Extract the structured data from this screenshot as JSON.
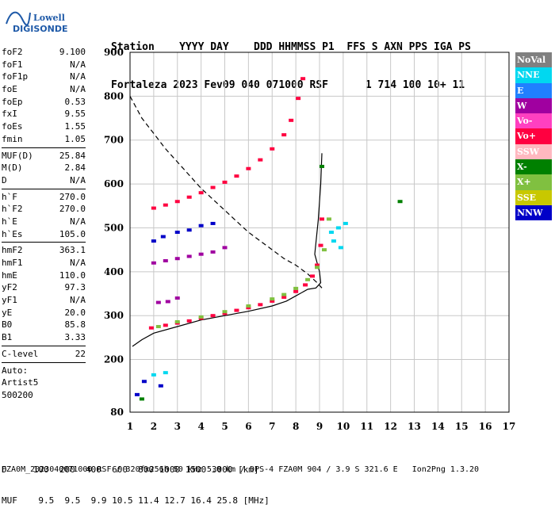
{
  "logo": {
    "line1": "Lowell",
    "line2": "DIGISONDE"
  },
  "header": {
    "labels": "Station    YYYY DAY    DDD HHMMSS P1  FFS S AXN PPS IGA PS",
    "values": "Fortaleza 2023 Fev09 040 071000 RSF      1 714 100 10+ 11"
  },
  "params": [
    {
      "name": "foF2",
      "value": "9.100"
    },
    {
      "name": "foF1",
      "value": "N/A"
    },
    {
      "name": "foF1p",
      "value": "N/A"
    },
    {
      "name": "foE",
      "value": "N/A"
    },
    {
      "name": "foEp",
      "value": "0.53"
    },
    {
      "name": "fxI",
      "value": "9.55"
    },
    {
      "name": "foEs",
      "value": "1.55"
    },
    {
      "name": "fmin",
      "value": "1.05"
    },
    {
      "sep": true
    },
    {
      "name": "MUF(D)",
      "value": "25.84"
    },
    {
      "name": "M(D)",
      "value": "2.84"
    },
    {
      "name": "D",
      "value": "N/A"
    },
    {
      "sep": true
    },
    {
      "name": "h`F",
      "value": "270.0"
    },
    {
      "name": "h`F2",
      "value": "270.0"
    },
    {
      "name": "h`E",
      "value": "N/A"
    },
    {
      "name": "h`Es",
      "value": "105.0"
    },
    {
      "sep": true
    },
    {
      "name": "hmF2",
      "value": "363.1"
    },
    {
      "name": "hmF1",
      "value": "N/A"
    },
    {
      "name": "hmE",
      "value": "110.0"
    },
    {
      "name": "yF2",
      "value": "97.3"
    },
    {
      "name": "yF1",
      "value": "N/A"
    },
    {
      "name": "yE",
      "value": "20.0"
    },
    {
      "name": "B0",
      "value": "85.8"
    },
    {
      "name": "B1",
      "value": "3.33"
    },
    {
      "sep": true
    },
    {
      "name": "C-level",
      "value": "22"
    },
    {
      "sep": true
    }
  ],
  "auto": {
    "l1": "Auto:",
    "l2": "Artist5",
    "l3": "500200"
  },
  "legend": [
    {
      "label": "NoVal",
      "color": "#808080"
    },
    {
      "label": "NNE",
      "color": "#00d8f0"
    },
    {
      "label": "E",
      "color": "#2080ff"
    },
    {
      "label": "W",
      "color": "#a000a0"
    },
    {
      "label": "Vo-",
      "color": "#ff40c0"
    },
    {
      "label": "Vo+",
      "color": "#ff0040"
    },
    {
      "label": "SSW",
      "color": "#ffb8c0"
    },
    {
      "label": "X-",
      "color": "#008000"
    },
    {
      "label": "X+",
      "color": "#80c040"
    },
    {
      "label": "SSE",
      "color": "#c8c800"
    },
    {
      "label": "NNW",
      "color": "#0000c8"
    }
  ],
  "footer": {
    "line1": "D     100  200  400  600  800 1000 1500 3000 [km]",
    "line2": "MUF    9.5  9.5  9.9 10.5 11.4 12.7 16.4 25.8 [MHz]",
    "line3": "FZA0M_2023040071000.RSF / 320fx256h 50 kHz 5.0 km / DPS-4 FZA0M 904 / 3.9 S 321.6 E   Ion2Png 1.3.20"
  },
  "chart_data": {
    "type": "scatter",
    "xlim": [
      1,
      17
    ],
    "ylim": [
      80,
      900
    ],
    "xticks": [
      1,
      2,
      3,
      4,
      5,
      6,
      7,
      8,
      9,
      10,
      11,
      12,
      13,
      14,
      15,
      16,
      17
    ],
    "yticks": [
      80,
      200,
      300,
      400,
      500,
      600,
      700,
      800,
      900
    ],
    "series": [
      {
        "name": "Vo+",
        "values": [
          [
            1.9,
            272
          ],
          [
            2.5,
            278
          ],
          [
            3,
            283
          ],
          [
            3.5,
            288
          ],
          [
            4,
            294
          ],
          [
            4.5,
            300
          ],
          [
            5,
            305
          ],
          [
            5.5,
            312
          ],
          [
            6,
            318
          ],
          [
            6.5,
            325
          ],
          [
            7,
            333
          ],
          [
            7.5,
            342
          ],
          [
            8,
            355
          ],
          [
            8.4,
            370
          ],
          [
            8.7,
            390
          ],
          [
            8.9,
            415
          ],
          [
            9.05,
            460
          ],
          [
            9.1,
            520
          ]
        ]
      },
      {
        "name": "Vo+",
        "values": [
          [
            2,
            545
          ],
          [
            2.5,
            552
          ],
          [
            3,
            560
          ],
          [
            3.5,
            570
          ],
          [
            4,
            580
          ],
          [
            4.5,
            592
          ],
          [
            5,
            604
          ],
          [
            5.5,
            618
          ],
          [
            6,
            635
          ],
          [
            6.5,
            655
          ],
          [
            7,
            680
          ],
          [
            7.5,
            712
          ],
          [
            7.8,
            745
          ],
          [
            8.1,
            795
          ],
          [
            8.3,
            840
          ]
        ]
      },
      {
        "name": "X+",
        "values": [
          [
            2.2,
            275
          ],
          [
            3,
            286
          ],
          [
            4,
            297
          ],
          [
            5,
            309
          ],
          [
            6,
            322
          ],
          [
            7,
            338
          ],
          [
            7.5,
            348
          ],
          [
            8,
            362
          ],
          [
            8.5,
            382
          ],
          [
            8.9,
            410
          ],
          [
            9.2,
            450
          ],
          [
            9.4,
            520
          ]
        ]
      },
      {
        "name": "W",
        "values": [
          [
            2.2,
            330
          ],
          [
            2.6,
            332
          ],
          [
            3,
            340
          ],
          [
            2,
            420
          ],
          [
            2.5,
            425
          ],
          [
            3,
            430
          ],
          [
            3.5,
            435
          ],
          [
            4,
            440
          ],
          [
            4.5,
            445
          ],
          [
            5,
            455
          ]
        ]
      },
      {
        "name": "NNW",
        "values": [
          [
            2,
            470
          ],
          [
            2.4,
            480
          ],
          [
            3,
            490
          ],
          [
            3.5,
            495
          ],
          [
            4,
            505
          ],
          [
            4.5,
            510
          ],
          [
            1.6,
            150
          ],
          [
            2.3,
            140
          ],
          [
            1.3,
            120
          ]
        ]
      },
      {
        "name": "NNE",
        "values": [
          [
            9.5,
            490
          ],
          [
            9.8,
            500
          ],
          [
            10.1,
            510
          ],
          [
            9.6,
            470
          ],
          [
            9.9,
            455
          ],
          [
            2.5,
            170
          ],
          [
            2,
            165
          ]
        ]
      },
      {
        "name": "X-",
        "values": [
          [
            12.4,
            560
          ],
          [
            9.1,
            640
          ],
          [
            1.5,
            110
          ]
        ]
      }
    ],
    "curves": [
      {
        "name": "profile",
        "style": "solid",
        "values": [
          [
            1.1,
            230
          ],
          [
            1.5,
            245
          ],
          [
            2,
            260
          ],
          [
            3,
            275
          ],
          [
            4,
            290
          ],
          [
            5,
            300
          ],
          [
            6,
            310
          ],
          [
            7,
            322
          ],
          [
            7.6,
            333
          ],
          [
            8,
            345
          ],
          [
            8.5,
            360
          ],
          [
            8.85,
            363
          ],
          [
            9.05,
            375
          ],
          [
            9.0,
            400
          ],
          [
            8.8,
            440
          ],
          [
            8.95,
            520
          ],
          [
            9.05,
            600
          ],
          [
            9.1,
            670
          ]
        ]
      },
      {
        "name": "dashed",
        "style": "dashed",
        "values": [
          [
            1,
            800
          ],
          [
            1.5,
            750
          ],
          [
            2,
            715
          ],
          [
            2.5,
            680
          ],
          [
            3,
            650
          ],
          [
            3.5,
            620
          ],
          [
            4,
            590
          ],
          [
            4.5,
            565
          ],
          [
            5,
            540
          ],
          [
            5.5,
            515
          ],
          [
            6,
            490
          ],
          [
            6.5,
            470
          ],
          [
            7,
            450
          ],
          [
            7.5,
            430
          ],
          [
            8,
            415
          ],
          [
            8.5,
            395
          ],
          [
            8.9,
            375
          ],
          [
            9.1,
            363
          ]
        ]
      }
    ]
  }
}
